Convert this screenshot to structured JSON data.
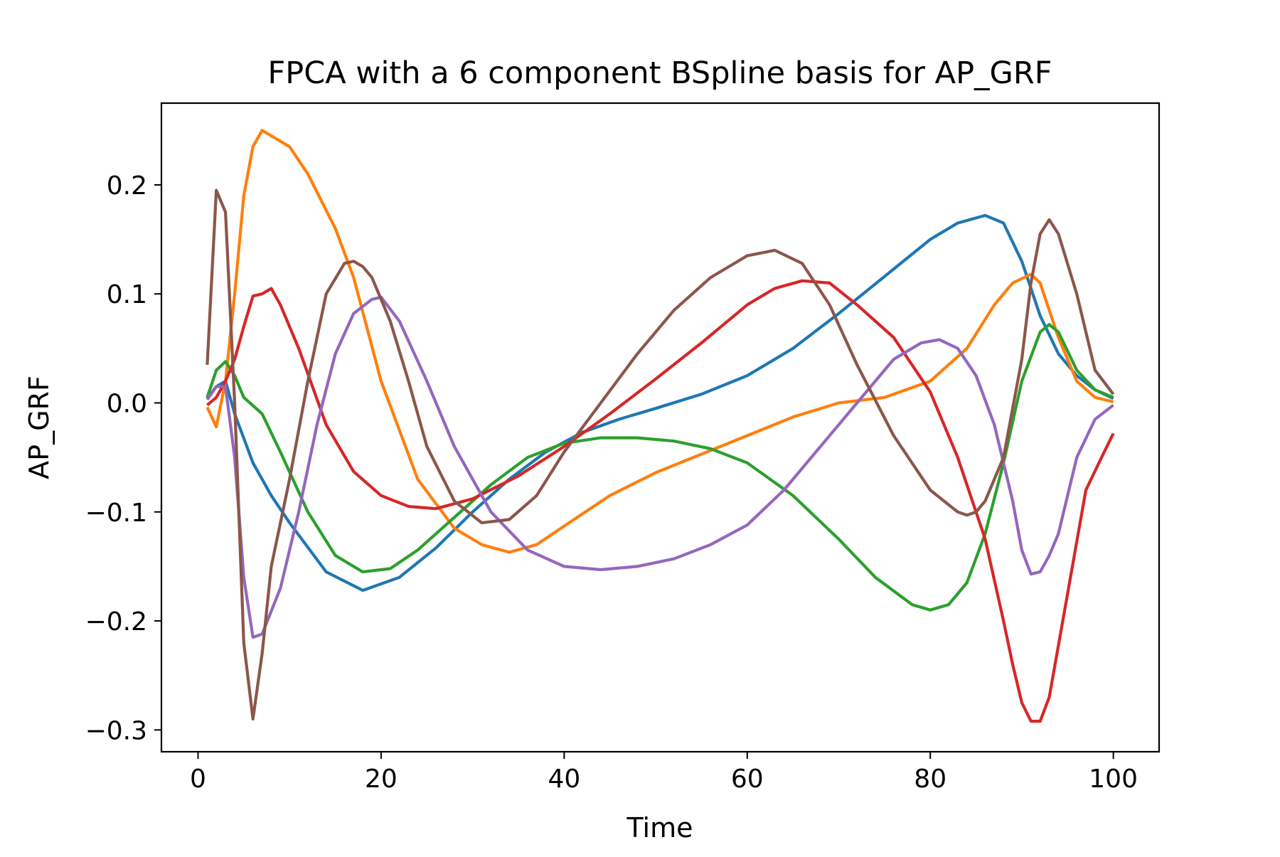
{
  "chart_data": {
    "type": "line",
    "title": "FPCA with a 6 component BSpline basis for AP_GRF",
    "xlabel": "Time",
    "ylabel": "AP_GRF",
    "xlim": [
      -4,
      105
    ],
    "ylim": [
      -0.32,
      0.275
    ],
    "xticks": [
      0,
      20,
      40,
      60,
      80,
      100
    ],
    "xtick_labels": [
      "0",
      "20",
      "40",
      "60",
      "80",
      "100"
    ],
    "yticks": [
      -0.3,
      -0.2,
      -0.1,
      0.0,
      0.1,
      0.2
    ],
    "ytick_labels": [
      "−0.3",
      "−0.2",
      "−0.1",
      "0.0",
      "0.1",
      "0.2"
    ],
    "grid": false,
    "legend": "none",
    "series": [
      {
        "color": "#1f77b4",
        "x": [
          1,
          2,
          3,
          4,
          6,
          8,
          10,
          14,
          18,
          22,
          26,
          30,
          34,
          38,
          42,
          46,
          50,
          55,
          60,
          65,
          70,
          75,
          80,
          83,
          86,
          88,
          90,
          92,
          94,
          96,
          98,
          100
        ],
        "y": [
          0.004,
          0.015,
          0.02,
          -0.01,
          -0.055,
          -0.085,
          -0.11,
          -0.155,
          -0.172,
          -0.16,
          -0.133,
          -0.1,
          -0.07,
          -0.045,
          -0.027,
          -0.015,
          -0.005,
          0.008,
          0.025,
          0.05,
          0.082,
          0.116,
          0.15,
          0.165,
          0.172,
          0.165,
          0.13,
          0.08,
          0.045,
          0.025,
          0.012,
          0.004
        ]
      },
      {
        "color": "#ff7f0e",
        "x": [
          1,
          2,
          3,
          4,
          5,
          6,
          7,
          8,
          9,
          10,
          12,
          15,
          17,
          20,
          24,
          28,
          31,
          34,
          37,
          40,
          45,
          50,
          55,
          60,
          65,
          70,
          75,
          80,
          84,
          87,
          89,
          91,
          92,
          94,
          96,
          98,
          100
        ],
        "y": [
          -0.004,
          -0.022,
          0.02,
          0.1,
          0.19,
          0.235,
          0.25,
          0.245,
          0.24,
          0.235,
          0.21,
          0.16,
          0.115,
          0.02,
          -0.07,
          -0.115,
          -0.13,
          -0.137,
          -0.13,
          -0.113,
          -0.085,
          -0.064,
          -0.047,
          -0.03,
          -0.013,
          0.0,
          0.005,
          0.02,
          0.05,
          0.09,
          0.11,
          0.118,
          0.11,
          0.06,
          0.02,
          0.005,
          0.001
        ]
      },
      {
        "color": "#2ca02c",
        "x": [
          1,
          2,
          3,
          4,
          5,
          7,
          9,
          12,
          15,
          18,
          21,
          24,
          28,
          32,
          36,
          40,
          44,
          48,
          52,
          56,
          60,
          65,
          70,
          74,
          78,
          80,
          82,
          84,
          86,
          88,
          90,
          92,
          93,
          94,
          96,
          98,
          100
        ],
        "y": [
          0.005,
          0.03,
          0.038,
          0.025,
          0.005,
          -0.01,
          -0.045,
          -0.1,
          -0.14,
          -0.155,
          -0.152,
          -0.135,
          -0.105,
          -0.075,
          -0.05,
          -0.037,
          -0.032,
          -0.032,
          -0.035,
          -0.042,
          -0.055,
          -0.085,
          -0.125,
          -0.16,
          -0.185,
          -0.19,
          -0.185,
          -0.165,
          -0.12,
          -0.055,
          0.02,
          0.065,
          0.072,
          0.065,
          0.03,
          0.012,
          0.005
        ]
      },
      {
        "color": "#d62728",
        "x": [
          1,
          2,
          3,
          4,
          5,
          6,
          7,
          8,
          9,
          11,
          14,
          17,
          20,
          23,
          26,
          30,
          35,
          40,
          45,
          50,
          55,
          60,
          63,
          66,
          69,
          72,
          76,
          80,
          83,
          86,
          88,
          89,
          90,
          91,
          92,
          93,
          95,
          97,
          99,
          100
        ],
        "y": [
          -0.002,
          0.005,
          0.02,
          0.04,
          0.07,
          0.098,
          0.1,
          0.105,
          0.09,
          0.05,
          -0.02,
          -0.063,
          -0.085,
          -0.095,
          -0.097,
          -0.088,
          -0.067,
          -0.04,
          -0.01,
          0.022,
          0.055,
          0.09,
          0.105,
          0.112,
          0.11,
          0.09,
          0.06,
          0.01,
          -0.05,
          -0.125,
          -0.2,
          -0.24,
          -0.275,
          -0.292,
          -0.292,
          -0.27,
          -0.175,
          -0.08,
          -0.045,
          -0.028
        ]
      },
      {
        "color": "#9467bd",
        "x": [
          1,
          2,
          3,
          4,
          5,
          6,
          7,
          9,
          11,
          13,
          15,
          17,
          19,
          20,
          22,
          25,
          28,
          32,
          36,
          40,
          44,
          48,
          52,
          56,
          60,
          64,
          68,
          72,
          76,
          79,
          81,
          83,
          85,
          87,
          89,
          90,
          91,
          92,
          93,
          94,
          96,
          98,
          100
        ],
        "y": [
          0.003,
          0.015,
          0.015,
          -0.05,
          -0.16,
          -0.215,
          -0.212,
          -0.17,
          -0.1,
          -0.02,
          0.045,
          0.082,
          0.095,
          0.097,
          0.075,
          0.02,
          -0.04,
          -0.1,
          -0.135,
          -0.15,
          -0.153,
          -0.15,
          -0.143,
          -0.13,
          -0.112,
          -0.08,
          -0.04,
          0.0,
          0.04,
          0.055,
          0.058,
          0.05,
          0.025,
          -0.02,
          -0.09,
          -0.135,
          -0.157,
          -0.155,
          -0.14,
          -0.12,
          -0.05,
          -0.015,
          -0.002
        ]
      },
      {
        "color": "#8c564b",
        "x": [
          1,
          2,
          3,
          4,
          5,
          6,
          7,
          8,
          10,
          12,
          14,
          16,
          17,
          18,
          19,
          21,
          23,
          25,
          28,
          31,
          34,
          37,
          40,
          44,
          48,
          52,
          56,
          60,
          63,
          66,
          69,
          72,
          76,
          80,
          83,
          84,
          85,
          86,
          88,
          90,
          91,
          92,
          93,
          94,
          96,
          98,
          100
        ],
        "y": [
          0.035,
          0.195,
          0.175,
          0.0,
          -0.22,
          -0.29,
          -0.23,
          -0.15,
          -0.07,
          0.02,
          0.1,
          0.128,
          0.13,
          0.125,
          0.115,
          0.075,
          0.02,
          -0.04,
          -0.09,
          -0.11,
          -0.107,
          -0.085,
          -0.045,
          0.0,
          0.045,
          0.085,
          0.115,
          0.135,
          0.14,
          0.128,
          0.09,
          0.035,
          -0.03,
          -0.08,
          -0.1,
          -0.103,
          -0.1,
          -0.09,
          -0.05,
          0.04,
          0.11,
          0.155,
          0.168,
          0.155,
          0.1,
          0.03,
          0.008
        ]
      }
    ]
  }
}
